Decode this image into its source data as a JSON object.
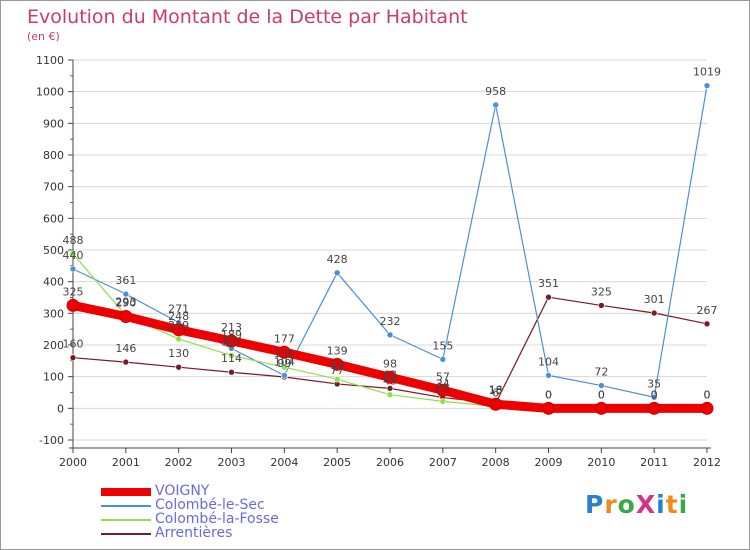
{
  "title": "Evolution du Montant de la Dette par Habitant",
  "unit": "(en €)",
  "logo": "ProXiti",
  "colors": {
    "title": "#cc3b6b",
    "axis": "#444444",
    "tick_mark": "#cc3355",
    "grid": "#d8d8d8"
  },
  "chart_data": {
    "type": "line",
    "title": "Evolution du Montant de la Dette par Habitant",
    "ylabel": "(en €)",
    "xlabel": "",
    "x": [
      "2000",
      "2001",
      "2002",
      "2003",
      "2004",
      "2005",
      "2006",
      "2007",
      "2008",
      "2009",
      "2010",
      "2011",
      "2012"
    ],
    "ylim": [
      -100,
      1100
    ],
    "yticks": [
      "-100",
      "0",
      "100",
      "200",
      "300",
      "400",
      "500",
      "600",
      "700",
      "800",
      "900",
      "1000",
      "1100"
    ],
    "grid": "horizontal",
    "legend": "bottom-left",
    "series": [
      {
        "name": "Colombé-le-Sec",
        "color": "#4a90d9",
        "values": [
          440,
          361,
          271,
          189,
          104,
          428,
          232,
          155,
          958,
          104,
          72,
          35,
          1019
        ],
        "labels": [
          "440",
          "361",
          "271",
          "189",
          "104",
          "428",
          "232",
          "155",
          "958",
          "104",
          "72",
          "35",
          "1019"
        ]
      },
      {
        "name": "Colombé-la-Fosse",
        "color": "#8ee04a",
        "values": [
          488,
          293,
          219,
          167,
          130,
          92,
          43,
          22,
          6,
          0,
          0,
          0,
          0
        ],
        "labels": [
          "488",
          "293",
          "219",
          "167",
          "130",
          "92",
          "43",
          "22",
          "6",
          "0",
          "0",
          "0",
          "0"
        ]
      },
      {
        "name": "Arrentières",
        "color": "#7a1a22",
        "values": [
          160,
          146,
          130,
          114,
          99,
          77,
          63,
          34,
          16,
          351,
          325,
          301,
          267
        ],
        "labels": [
          "160",
          "146",
          "130",
          "114",
          "99",
          "77",
          "63",
          "34",
          "16",
          "351",
          "325",
          "301",
          "267"
        ]
      },
      {
        "name": "VOIGNY",
        "color": "#ee0000",
        "values": [
          325,
          290,
          248,
          213,
          177,
          139,
          98,
          57,
          13,
          0,
          0,
          0,
          0
        ],
        "labels": [
          "325",
          "290",
          "248",
          "213",
          "177",
          "139",
          "98",
          "57",
          "13",
          "0",
          "0",
          "0",
          "0"
        ]
      }
    ],
    "legend_order": [
      "VOIGNY",
      "Colombé-le-Sec",
      "Colombé-la-Fosse",
      "Arrentières"
    ]
  }
}
